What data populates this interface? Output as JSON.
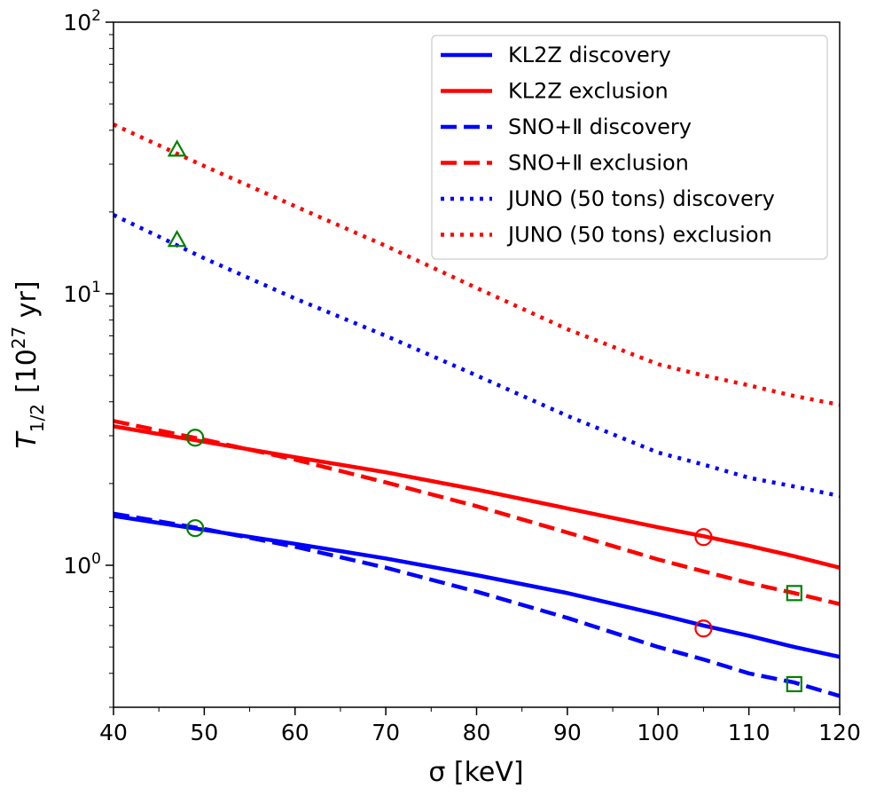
{
  "chart_data": {
    "type": "line",
    "title": "",
    "xlabel": "σ [keV]",
    "ylabel": {
      "symbol": "T",
      "subscript": "1/2",
      "units_base": "[10",
      "units_exp": "27",
      "units_tail": " yr]"
    },
    "xlim": [
      40,
      120
    ],
    "ylim": [
      0.3,
      100
    ],
    "yscale": "log",
    "x_ticks": [
      "40",
      "50",
      "60",
      "70",
      "80",
      "90",
      "100",
      "110",
      "120"
    ],
    "y_ticks": [
      {
        "base": "10",
        "exp": "0"
      },
      {
        "base": "10",
        "exp": "1"
      },
      {
        "base": "10",
        "exp": "2"
      }
    ],
    "legend_position": "top-right",
    "x": [
      40,
      50,
      60,
      70,
      80,
      90,
      100,
      105,
      110,
      115,
      120
    ],
    "series": [
      {
        "name": "KL2Z discovery",
        "color": "#0000ff",
        "style": "solid",
        "values": [
          1.52,
          1.35,
          1.2,
          1.06,
          0.92,
          0.79,
          0.66,
          0.6,
          0.55,
          0.5,
          0.46
        ]
      },
      {
        "name": "KL2Z exclusion",
        "color": "#ff0000",
        "style": "solid",
        "values": [
          3.25,
          2.85,
          2.5,
          2.2,
          1.9,
          1.62,
          1.38,
          1.28,
          1.18,
          1.08,
          0.98
        ]
      },
      {
        "name": "SNO+Ⅱ discovery",
        "color": "#0000ff",
        "style": "dashed",
        "values": [
          1.55,
          1.36,
          1.17,
          0.98,
          0.8,
          0.64,
          0.5,
          0.45,
          0.4,
          0.37,
          0.33
        ]
      },
      {
        "name": "SNO+Ⅱ exclusion",
        "color": "#ff0000",
        "style": "dashed",
        "values": [
          3.4,
          2.9,
          2.45,
          2.02,
          1.65,
          1.32,
          1.05,
          0.95,
          0.86,
          0.79,
          0.72
        ]
      },
      {
        "name": "JUNO (50 tons) discovery",
        "color": "#0000ff",
        "style": "dotted",
        "values": [
          19.5,
          13.5,
          9.6,
          7.0,
          5.0,
          3.55,
          2.6,
          2.35,
          2.1,
          1.95,
          1.8
        ]
      },
      {
        "name": "JUNO (50 tons) exclusion",
        "color": "#ff0000",
        "style": "dotted",
        "values": [
          42.0,
          29.5,
          21.0,
          15.0,
          10.5,
          7.4,
          5.5,
          5.0,
          4.6,
          4.2,
          3.9
        ]
      }
    ],
    "markers": [
      {
        "shape": "triangle",
        "color": "#008000",
        "x": 47,
        "y": 34
      },
      {
        "shape": "triangle",
        "color": "#008000",
        "x": 47,
        "y": 15.8
      },
      {
        "shape": "circle",
        "color": "#008000",
        "x": 49,
        "y": 2.95
      },
      {
        "shape": "circle",
        "color": "#008000",
        "x": 49,
        "y": 1.37
      },
      {
        "shape": "circle",
        "color": "#ff0000",
        "x": 105,
        "y": 1.27
      },
      {
        "shape": "circle",
        "color": "#ff0000",
        "x": 105,
        "y": 0.585
      },
      {
        "shape": "square",
        "color": "#008000",
        "x": 115,
        "y": 0.79
      },
      {
        "shape": "square",
        "color": "#008000",
        "x": 115,
        "y": 0.365
      }
    ]
  }
}
